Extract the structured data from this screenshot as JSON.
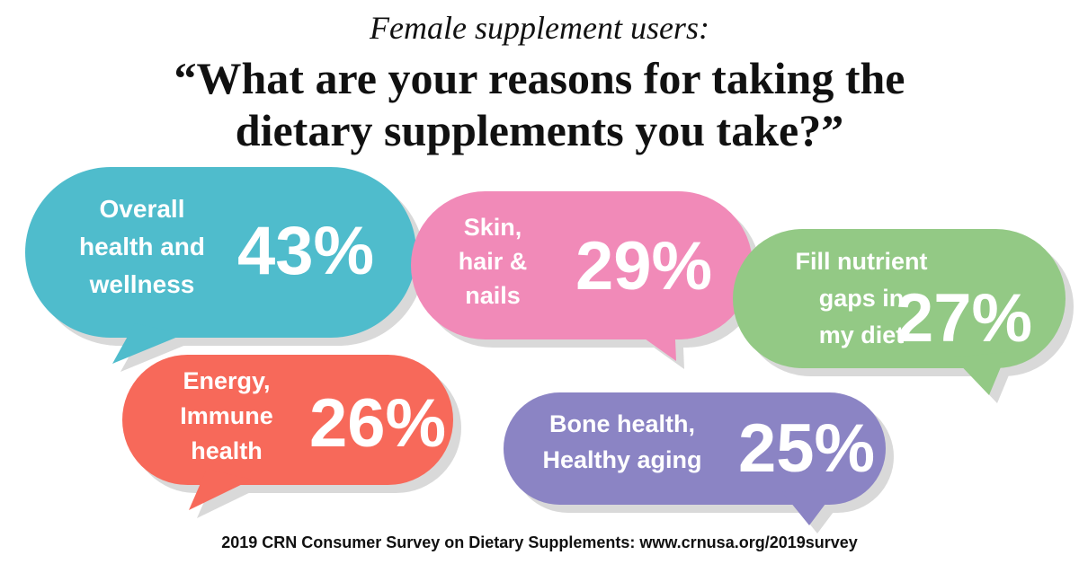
{
  "header": {
    "subtitle": "Female supplement users:",
    "title_line1": "“What are your reasons for taking the",
    "title_line2": "dietary supplements you take?”"
  },
  "footer": {
    "source": "2019 CRN Consumer Survey on Dietary Supplements: www.crnusa.org/2019survey"
  },
  "chart_data": {
    "type": "bar",
    "title": "“What are your reasons for taking the dietary supplements you take?”",
    "subtitle": "Female supplement users:",
    "categories": [
      "Overall health and wellness",
      "Skin, hair & nails",
      "Fill nutrient gaps in my diet",
      "Energy, Immune health",
      "Bone health, Healthy aging"
    ],
    "series": [
      {
        "values": [
          43,
          29,
          27,
          26,
          25
        ]
      }
    ],
    "value_labels": [
      "43%",
      "29%",
      "27%",
      "26%",
      "25%"
    ],
    "label_lines": [
      [
        "Overall",
        "health and",
        "wellness"
      ],
      [
        "Skin,",
        "hair &",
        "nails"
      ],
      [
        "Fill nutrient",
        "gaps in",
        "my diet"
      ],
      [
        "Energy,",
        "Immune",
        "health"
      ],
      [
        "Bone health,",
        "Healthy aging"
      ]
    ],
    "colors": [
      "#4fbccc",
      "#f18ab8",
      "#93c985",
      "#f7695a",
      "#8b84c4"
    ],
    "shadow_color": "#d9d9d9"
  }
}
